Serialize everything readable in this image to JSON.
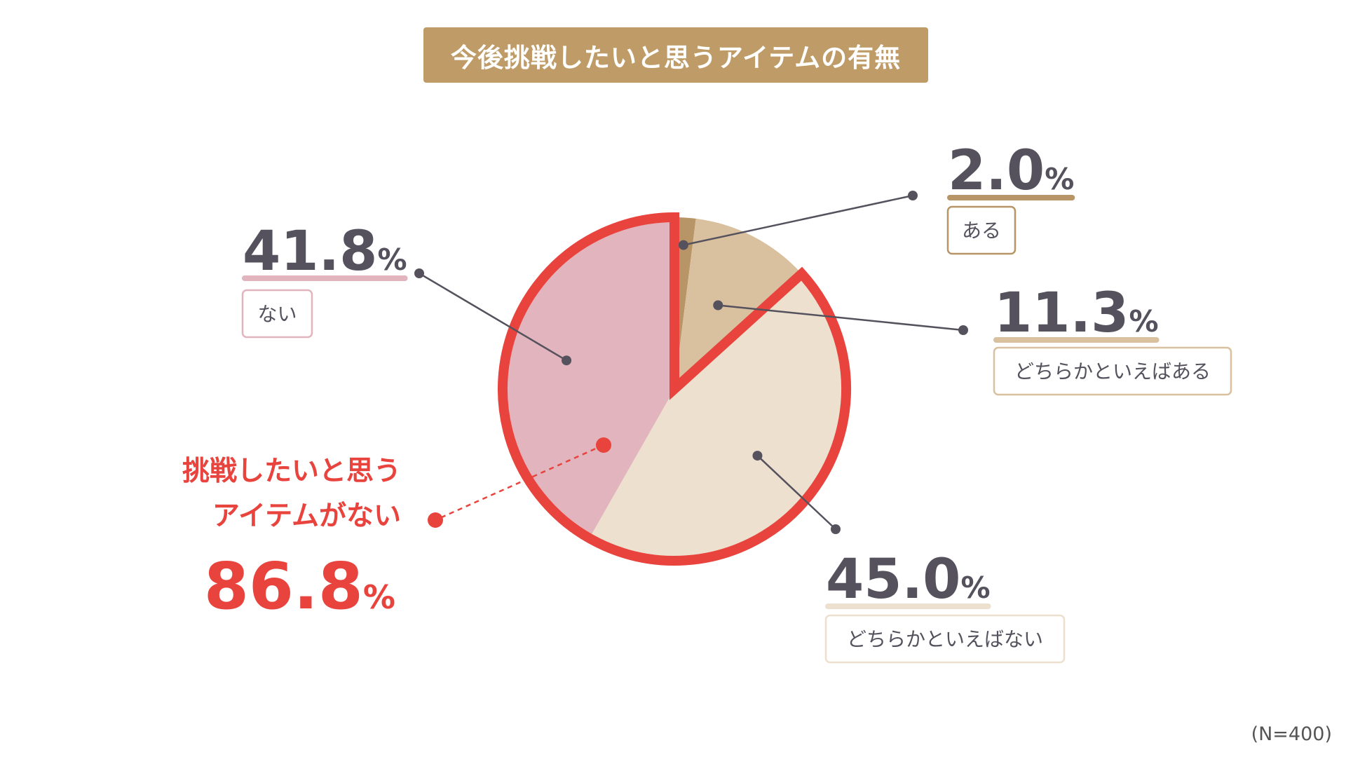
{
  "title": "今後挑戦したいと思うアイテムの有無",
  "footnote": "(N=400)",
  "chart_data": {
    "type": "pie",
    "title": "今後挑戦したいと思うアイテムの有無",
    "sample_size": "(N=400)",
    "unit": "%",
    "start": "12 o'clock",
    "direction": "clockwise",
    "slices": [
      {
        "label": "ある",
        "value": 2.0,
        "display": "2.0",
        "color": "#b89566",
        "label_side": "right"
      },
      {
        "label": "どちらかといえばある",
        "value": 11.3,
        "display": "11.3",
        "color": "#d9c09f",
        "label_side": "right"
      },
      {
        "label": "どちらかといえばない",
        "value": 45.0,
        "display": "45.0",
        "color": "#ede0cf",
        "label_side": "right"
      },
      {
        "label": "ない",
        "value": 41.8,
        "display": "41.8",
        "color": "#e2b4bd",
        "label_side": "left"
      }
    ],
    "highlight": {
      "label_line1": "挑戦したいと思う",
      "label_line2": "アイテムがない",
      "value": 86.8,
      "display": "86.8",
      "unit": "%",
      "color": "#e9433e",
      "includes": [
        "どちらかといえばない",
        "ない"
      ]
    }
  }
}
